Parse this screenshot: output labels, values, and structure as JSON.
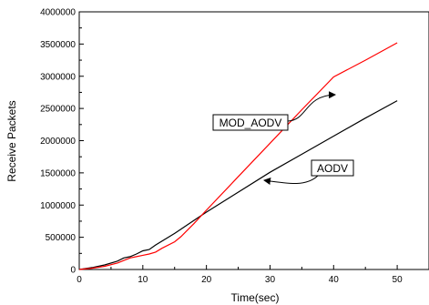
{
  "chart_data": {
    "type": "line",
    "title": "",
    "xlabel": "Time(sec)",
    "ylabel": "Receive Packets",
    "xlim": [
      0,
      55
    ],
    "ylim": [
      0,
      4000000
    ],
    "xticks": [
      0,
      10,
      20,
      30,
      40,
      50
    ],
    "yticks": [
      0,
      500000,
      1000000,
      1500000,
      2000000,
      2500000,
      3000000,
      3500000,
      4000000
    ],
    "grid": false,
    "series": [
      {
        "name": "AODV",
        "color": "#000000",
        "x": [
          0,
          2,
          4,
          6,
          7,
          8,
          9,
          10,
          11,
          12,
          15,
          18,
          20,
          25,
          30,
          35,
          40,
          45,
          50
        ],
        "y": [
          0,
          30000,
          70000,
          130000,
          180000,
          200000,
          240000,
          290000,
          310000,
          380000,
          560000,
          760000,
          890000,
          1200000,
          1510000,
          1790000,
          2070000,
          2350000,
          2620000
        ]
      },
      {
        "name": "MOD_AODV",
        "color": "#ff0000",
        "x": [
          0,
          2,
          4,
          6,
          7,
          8,
          9,
          10,
          11,
          12,
          13,
          15,
          16,
          18,
          20,
          25,
          30,
          35,
          40,
          45,
          50
        ],
        "y": [
          0,
          20000,
          50000,
          100000,
          140000,
          180000,
          200000,
          220000,
          240000,
          270000,
          330000,
          430000,
          510000,
          710000,
          920000,
          1440000,
          1960000,
          2480000,
          2990000,
          3250000,
          3520000
        ]
      }
    ],
    "annotations": [
      {
        "text": "MOD_AODV",
        "series": "MOD_AODV"
      },
      {
        "text": "AODV",
        "series": "AODV"
      }
    ]
  }
}
